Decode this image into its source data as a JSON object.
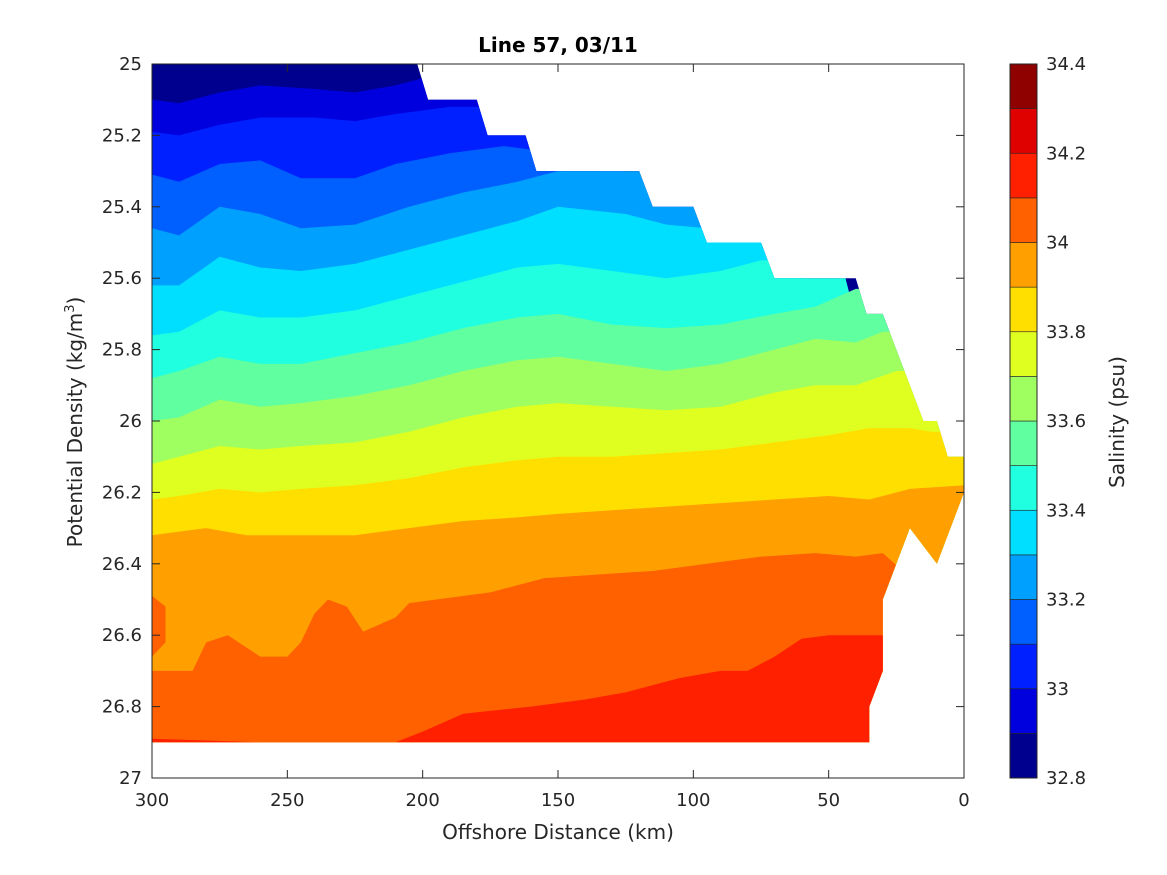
{
  "chart_data": {
    "type": "filled-contour",
    "title": "Line 57, 03/11",
    "xlabel": "Offshore Distance (km)",
    "ylabel_main": "Potential Density (kg/m",
    "ylabel_sup": "3",
    "ylabel_end": ")",
    "colorbar_label": "Salinity (psu)",
    "x_reversed": true,
    "y_reversed": true,
    "xlim": [
      0,
      300
    ],
    "ylim": [
      25,
      27
    ],
    "x_ticks": [
      300,
      250,
      200,
      150,
      100,
      50,
      0
    ],
    "x_tick_labels": [
      "300",
      "250",
      "200",
      "150",
      "100",
      "50",
      "0"
    ],
    "y_ticks": [
      25,
      25.2,
      25.4,
      25.6,
      25.8,
      26,
      26.2,
      26.4,
      26.6,
      26.8,
      27
    ],
    "y_tick_labels": [
      "25",
      "25.2",
      "25.4",
      "25.6",
      "25.8",
      "26",
      "26.2",
      "26.4",
      "26.6",
      "26.8",
      "27"
    ],
    "colorbar_range": [
      32.8,
      34.4
    ],
    "colorbar_ticks": [
      32.8,
      33,
      33.2,
      33.4,
      33.6,
      33.8,
      34,
      34.2,
      34.4
    ],
    "colorbar_tick_labels": [
      "32.8",
      "33",
      "33.2",
      "33.4",
      "33.6",
      "33.8",
      "34",
      "34.2",
      "34.4"
    ],
    "contour_levels": [
      32.8,
      32.9,
      33.0,
      33.1,
      33.2,
      33.3,
      33.4,
      33.5,
      33.6,
      33.7,
      33.8,
      33.9,
      34.0,
      34.1,
      34.2,
      34.3,
      34.4
    ],
    "level_colors": [
      "#00008F",
      "#0000DF",
      "#0020FF",
      "#0060FF",
      "#00A0FF",
      "#00DFFF",
      "#20FFDF",
      "#60FFA0",
      "#A0FF60",
      "#DFFF20",
      "#FFDF00",
      "#FFA000",
      "#FF6000",
      "#FF2000",
      "#DF0000",
      "#8F0000"
    ],
    "data_mask_top": [
      [
        300,
        25.0
      ],
      [
        202,
        25.0
      ],
      [
        198,
        25.1
      ],
      [
        180,
        25.1
      ],
      [
        176,
        25.2
      ],
      [
        162,
        25.2
      ],
      [
        158,
        25.3
      ],
      [
        120,
        25.3
      ],
      [
        115,
        25.4
      ],
      [
        100,
        25.4
      ],
      [
        95,
        25.5
      ],
      [
        75,
        25.5
      ],
      [
        70,
        25.6
      ],
      [
        40,
        25.6
      ],
      [
        36,
        25.7
      ],
      [
        30,
        25.7
      ],
      [
        25,
        25.8
      ],
      [
        15,
        26.0
      ],
      [
        10,
        26.0
      ],
      [
        6,
        26.1
      ],
      [
        0,
        26.1
      ]
    ],
    "data_mask_bottom": [
      [
        300,
        26.9
      ],
      [
        35,
        26.9
      ]
    ],
    "notch": [
      [
        0,
        26.2
      ],
      [
        10,
        26.4
      ],
      [
        20,
        26.3
      ],
      [
        30,
        26.5
      ],
      [
        30,
        26.7
      ],
      [
        35,
        26.8
      ]
    ],
    "isopycnal_levels": [
      {
        "s": 32.9,
        "pts": [
          [
            300,
            25.1
          ],
          [
            290,
            25.11
          ],
          [
            275,
            25.08
          ],
          [
            260,
            25.06
          ],
          [
            240,
            25.07
          ],
          [
            225,
            25.08
          ],
          [
            210,
            25.06
          ],
          [
            200,
            25.04
          ]
        ]
      },
      {
        "s": 33.0,
        "pts": [
          [
            300,
            25.19
          ],
          [
            290,
            25.2
          ],
          [
            275,
            25.17
          ],
          [
            260,
            25.15
          ],
          [
            240,
            25.15
          ],
          [
            225,
            25.16
          ],
          [
            210,
            25.14
          ],
          [
            190,
            25.12
          ],
          [
            178,
            25.12
          ]
        ]
      },
      {
        "s": 33.1,
        "pts": [
          [
            300,
            25.31
          ],
          [
            290,
            25.33
          ],
          [
            275,
            25.28
          ],
          [
            260,
            25.27
          ],
          [
            245,
            25.32
          ],
          [
            225,
            25.32
          ],
          [
            210,
            25.28
          ],
          [
            190,
            25.25
          ],
          [
            170,
            25.23
          ],
          [
            160,
            25.24
          ]
        ]
      },
      {
        "s": 33.2,
        "pts": [
          [
            300,
            25.46
          ],
          [
            290,
            25.48
          ],
          [
            275,
            25.4
          ],
          [
            260,
            25.42
          ],
          [
            245,
            25.46
          ],
          [
            225,
            25.45
          ],
          [
            205,
            25.4
          ],
          [
            185,
            25.36
          ],
          [
            165,
            25.33
          ],
          [
            150,
            25.3
          ],
          [
            130,
            25.3
          ],
          [
            120,
            25.3
          ]
        ]
      },
      {
        "s": 33.3,
        "pts": [
          [
            300,
            25.62
          ],
          [
            290,
            25.62
          ],
          [
            275,
            25.54
          ],
          [
            260,
            25.57
          ],
          [
            245,
            25.58
          ],
          [
            225,
            25.56
          ],
          [
            205,
            25.52
          ],
          [
            185,
            25.48
          ],
          [
            165,
            25.44
          ],
          [
            150,
            25.4
          ],
          [
            125,
            25.42
          ],
          [
            110,
            25.45
          ],
          [
            95,
            25.46
          ]
        ]
      },
      {
        "s": 33.4,
        "pts": [
          [
            300,
            25.76
          ],
          [
            290,
            25.75
          ],
          [
            275,
            25.69
          ],
          [
            260,
            25.71
          ],
          [
            245,
            25.71
          ],
          [
            225,
            25.69
          ],
          [
            205,
            25.65
          ],
          [
            185,
            25.61
          ],
          [
            165,
            25.57
          ],
          [
            150,
            25.56
          ],
          [
            130,
            25.58
          ],
          [
            110,
            25.6
          ],
          [
            90,
            25.58
          ],
          [
            75,
            25.55
          ]
        ]
      },
      {
        "s": 33.5,
        "pts": [
          [
            300,
            25.88
          ],
          [
            290,
            25.86
          ],
          [
            275,
            25.82
          ],
          [
            260,
            25.84
          ],
          [
            245,
            25.84
          ],
          [
            225,
            25.81
          ],
          [
            205,
            25.78
          ],
          [
            185,
            25.74
          ],
          [
            165,
            25.71
          ],
          [
            150,
            25.7
          ],
          [
            130,
            25.73
          ],
          [
            110,
            25.74
          ],
          [
            90,
            25.73
          ],
          [
            70,
            25.7
          ],
          [
            55,
            25.68
          ],
          [
            40,
            25.63
          ]
        ]
      },
      {
        "s": 33.6,
        "pts": [
          [
            300,
            26.0
          ],
          [
            290,
            25.99
          ],
          [
            275,
            25.94
          ],
          [
            260,
            25.96
          ],
          [
            245,
            25.95
          ],
          [
            225,
            25.93
          ],
          [
            205,
            25.9
          ],
          [
            185,
            25.86
          ],
          [
            165,
            25.83
          ],
          [
            150,
            25.82
          ],
          [
            130,
            25.84
          ],
          [
            110,
            25.86
          ],
          [
            90,
            25.84
          ],
          [
            70,
            25.8
          ],
          [
            55,
            25.77
          ],
          [
            40,
            25.78
          ],
          [
            30,
            25.75
          ]
        ]
      },
      {
        "s": 33.7,
        "pts": [
          [
            300,
            26.12
          ],
          [
            290,
            26.1
          ],
          [
            275,
            26.07
          ],
          [
            260,
            26.08
          ],
          [
            245,
            26.07
          ],
          [
            225,
            26.06
          ],
          [
            205,
            26.03
          ],
          [
            185,
            25.99
          ],
          [
            165,
            25.96
          ],
          [
            150,
            25.95
          ],
          [
            130,
            25.96
          ],
          [
            110,
            25.97
          ],
          [
            90,
            25.96
          ],
          [
            70,
            25.92
          ],
          [
            55,
            25.9
          ],
          [
            40,
            25.9
          ],
          [
            25,
            25.86
          ]
        ]
      },
      {
        "s": 33.8,
        "pts": [
          [
            300,
            26.22
          ],
          [
            290,
            26.21
          ],
          [
            275,
            26.19
          ],
          [
            260,
            26.2
          ],
          [
            245,
            26.19
          ],
          [
            225,
            26.18
          ],
          [
            205,
            26.16
          ],
          [
            185,
            26.13
          ],
          [
            165,
            26.11
          ],
          [
            150,
            26.1
          ],
          [
            130,
            26.1
          ],
          [
            110,
            26.09
          ],
          [
            90,
            26.08
          ],
          [
            70,
            26.06
          ],
          [
            50,
            26.04
          ],
          [
            35,
            26.02
          ],
          [
            20,
            26.02
          ],
          [
            12,
            26.03
          ]
        ]
      },
      {
        "s": 33.9,
        "pts": [
          [
            300,
            26.32
          ],
          [
            290,
            26.31
          ],
          [
            280,
            26.3
          ],
          [
            265,
            26.32
          ],
          [
            245,
            26.32
          ],
          [
            225,
            26.32
          ],
          [
            205,
            26.3
          ],
          [
            185,
            26.28
          ],
          [
            165,
            26.27
          ],
          [
            150,
            26.26
          ],
          [
            130,
            26.25
          ],
          [
            110,
            26.24
          ],
          [
            90,
            26.23
          ],
          [
            70,
            26.22
          ],
          [
            50,
            26.21
          ],
          [
            35,
            26.22
          ],
          [
            20,
            26.19
          ],
          [
            0,
            26.18
          ]
        ]
      },
      {
        "s": 34.0,
        "pts": [
          [
            300,
            26.66
          ],
          [
            295,
            26.62
          ],
          [
            295,
            26.52
          ],
          [
            300,
            26.49
          ]
        ],
        "also": [
          [
            300,
            26.7
          ],
          [
            285,
            26.7
          ],
          [
            280,
            26.62
          ],
          [
            272,
            26.6
          ],
          [
            260,
            26.66
          ],
          [
            250,
            26.66
          ],
          [
            245,
            26.62
          ],
          [
            240,
            26.54
          ],
          [
            235,
            26.5
          ],
          [
            228,
            26.52
          ],
          [
            222,
            26.59
          ],
          [
            210,
            26.55
          ],
          [
            205,
            26.51
          ],
          [
            195,
            26.5
          ],
          [
            175,
            26.48
          ],
          [
            155,
            26.44
          ],
          [
            135,
            26.43
          ],
          [
            115,
            26.42
          ],
          [
            95,
            26.4
          ],
          [
            75,
            26.38
          ],
          [
            55,
            26.37
          ],
          [
            40,
            26.38
          ],
          [
            30,
            26.37
          ]
        ]
      },
      {
        "s": 34.1,
        "pts": [
          [
            300,
            26.89
          ],
          [
            260,
            26.9
          ],
          [
            210,
            26.9
          ],
          [
            200,
            26.87
          ],
          [
            185,
            26.82
          ],
          [
            160,
            26.8
          ],
          [
            140,
            26.78
          ],
          [
            125,
            26.76
          ],
          [
            105,
            26.72
          ],
          [
            90,
            26.7
          ],
          [
            80,
            26.7
          ],
          [
            70,
            26.66
          ],
          [
            60,
            26.61
          ],
          [
            50,
            26.6
          ],
          [
            35,
            26.6
          ]
        ]
      }
    ]
  }
}
